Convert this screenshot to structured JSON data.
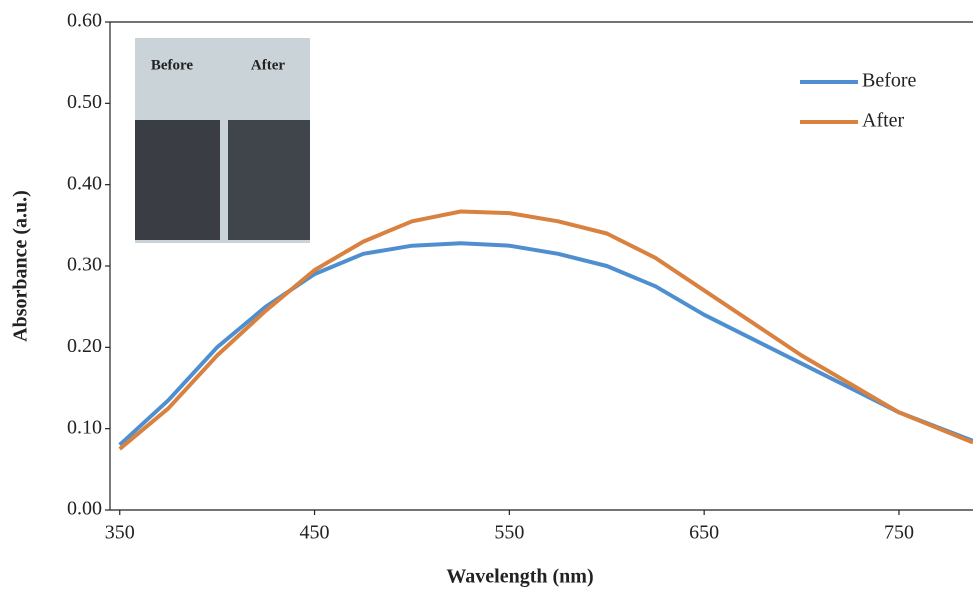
{
  "chart_data": {
    "type": "line",
    "x_label": "Wavelength (nm)",
    "y_label": "Absorbance (a.u.)",
    "x": [
      350,
      375,
      400,
      425,
      450,
      475,
      500,
      525,
      550,
      575,
      600,
      625,
      650,
      675,
      700,
      725,
      750,
      788
    ],
    "series": [
      {
        "name": "Before",
        "color": "#4f8fcf",
        "values": [
          0.08,
          0.135,
          0.2,
          0.25,
          0.29,
          0.315,
          0.325,
          0.328,
          0.325,
          0.315,
          0.3,
          0.275,
          0.24,
          0.21,
          0.18,
          0.15,
          0.12,
          0.085
        ]
      },
      {
        "name": "After",
        "color": "#d9813e",
        "values": [
          0.075,
          0.125,
          0.19,
          0.245,
          0.295,
          0.33,
          0.355,
          0.367,
          0.365,
          0.355,
          0.34,
          0.31,
          0.27,
          0.23,
          0.19,
          0.155,
          0.12,
          0.083
        ]
      }
    ],
    "xlim": [
      345,
      788
    ],
    "xticks": [
      350,
      450,
      550,
      650,
      750
    ],
    "ylim": [
      0,
      0.6
    ],
    "yticks": [
      {
        "value": 0,
        "label": "0.00"
      },
      {
        "value": 0.1,
        "label": "0.10"
      },
      {
        "value": 0.2,
        "label": "0.20"
      },
      {
        "value": 0.3,
        "label": "0.30"
      },
      {
        "value": 0.4,
        "label": "0.40"
      },
      {
        "value": 0.5,
        "label": "0.50"
      },
      {
        "value": 0.6,
        "label": "0.60"
      }
    ],
    "legend": "upper right",
    "annotations": [
      "Before",
      "After"
    ]
  }
}
